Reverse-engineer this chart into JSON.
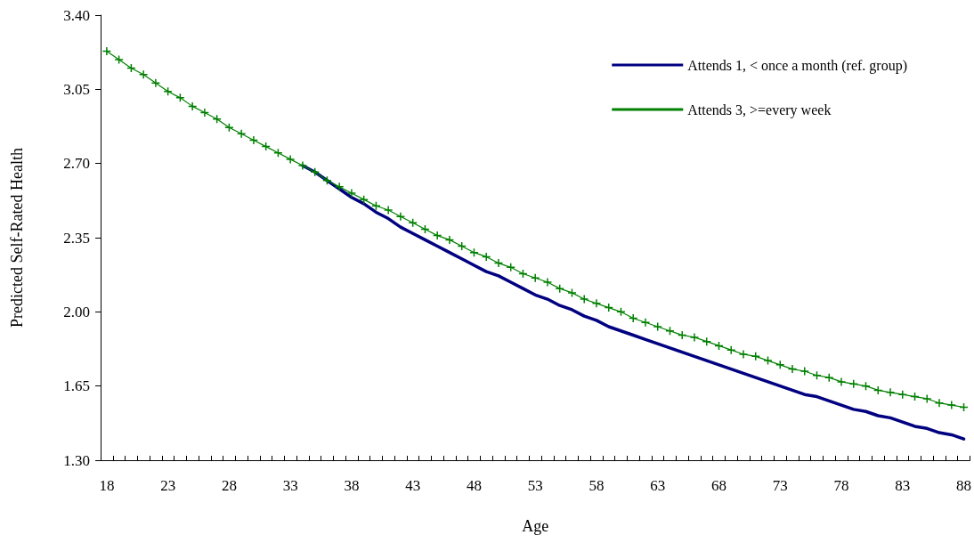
{
  "chart_data": {
    "type": "line",
    "xlabel": "Age",
    "ylabel": "Predicted Self-Rated Health",
    "categories": [
      "18",
      null,
      null,
      null,
      null,
      "23",
      null,
      null,
      null,
      null,
      "28",
      null,
      null,
      null,
      null,
      "33",
      null,
      null,
      null,
      null,
      "38",
      null,
      null,
      null,
      null,
      "43",
      null,
      null,
      null,
      null,
      "48",
      null,
      null,
      null,
      null,
      "53",
      null,
      null,
      null,
      null,
      "58",
      null,
      null,
      null,
      null,
      "63",
      null,
      null,
      null,
      null,
      "68",
      null,
      null,
      null,
      null,
      "73",
      null,
      null,
      null,
      null,
      "78",
      null,
      null,
      null,
      null,
      "83",
      null,
      null,
      null,
      null,
      "88"
    ],
    "series": [
      {
        "name": "Attends 1, < once a month (ref. group)",
        "color": "#000080",
        "marker": "none",
        "values": [
          null,
          null,
          null,
          null,
          null,
          null,
          null,
          null,
          null,
          null,
          null,
          null,
          null,
          null,
          null,
          null,
          2.69,
          2.66,
          2.62,
          2.58,
          2.54,
          2.51,
          2.47,
          2.44,
          2.4,
          2.37,
          2.34,
          2.31,
          2.28,
          2.25,
          2.22,
          2.19,
          2.17,
          2.14,
          2.11,
          2.08,
          2.06,
          2.03,
          2.01,
          1.98,
          1.96,
          1.93,
          1.91,
          1.89,
          1.87,
          1.85,
          1.83,
          1.81,
          1.79,
          1.77,
          1.75,
          1.73,
          1.71,
          1.69,
          1.67,
          1.65,
          1.63,
          1.61,
          1.6,
          1.58,
          1.56,
          1.54,
          1.53,
          1.51,
          1.5,
          1.48,
          1.46,
          1.45,
          1.43,
          1.42,
          1.4
        ]
      },
      {
        "name": "Attends 3, >=every week",
        "color": "#008000",
        "marker": "cross",
        "values": [
          3.23,
          3.19,
          3.15,
          3.12,
          3.08,
          3.04,
          3.01,
          2.97,
          2.94,
          2.91,
          2.87,
          2.84,
          2.81,
          2.78,
          2.75,
          2.72,
          2.69,
          2.66,
          2.62,
          2.59,
          2.56,
          2.53,
          2.5,
          2.48,
          2.45,
          2.42,
          2.39,
          2.36,
          2.34,
          2.31,
          2.28,
          2.26,
          2.23,
          2.21,
          2.18,
          2.16,
          2.14,
          2.11,
          2.09,
          2.06,
          2.04,
          2.02,
          2.0,
          1.97,
          1.95,
          1.93,
          1.91,
          1.89,
          1.88,
          1.86,
          1.84,
          1.82,
          1.8,
          1.79,
          1.77,
          1.75,
          1.73,
          1.72,
          1.7,
          1.69,
          1.67,
          1.66,
          1.65,
          1.63,
          1.62,
          1.61,
          1.6,
          1.59,
          1.57,
          1.56,
          1.55
        ]
      }
    ],
    "ylim": [
      1.3,
      3.4
    ],
    "yticks": [
      {
        "value": 1.3,
        "label": "1.30"
      },
      {
        "value": 1.65,
        "label": "1.65"
      },
      {
        "value": 2.0,
        "label": "2.00"
      },
      {
        "value": 2.35,
        "label": "2.35"
      },
      {
        "value": 2.7,
        "label": "2.70"
      },
      {
        "value": 3.05,
        "label": "3.05"
      },
      {
        "value": 3.4,
        "label": "3.40"
      }
    ],
    "grid": false,
    "legend": "top right"
  }
}
